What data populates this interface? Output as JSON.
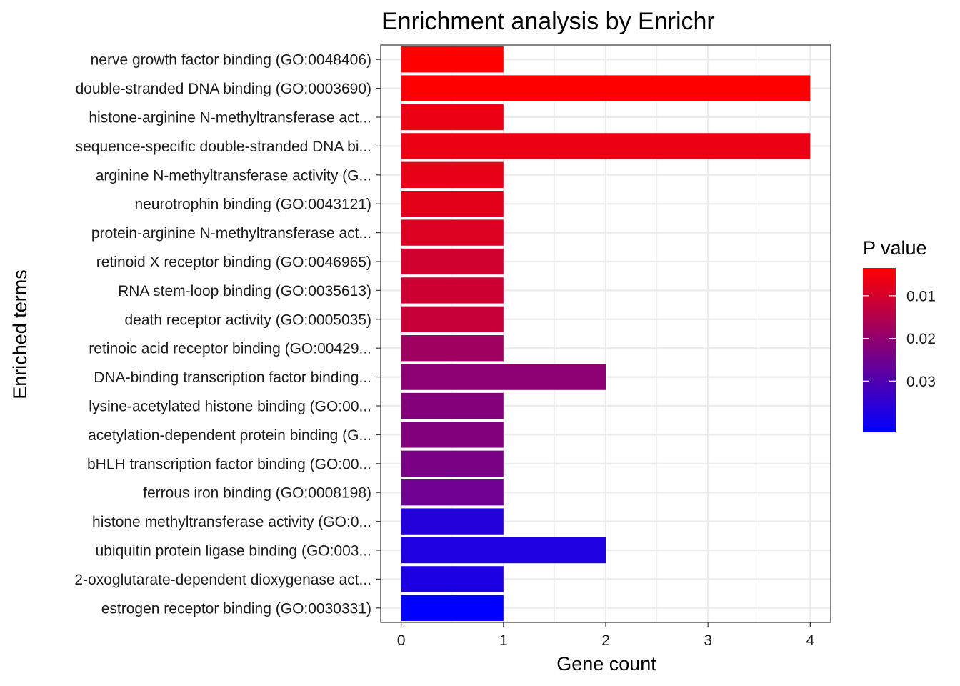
{
  "chart_data": {
    "type": "bar",
    "orientation": "horizontal",
    "title": "Enrichment analysis by Enrichr",
    "xlabel": "Gene count",
    "ylabel": "Enriched terms",
    "xlim": [
      -0.2,
      4.2
    ],
    "xticks": [
      0,
      1,
      2,
      3,
      4
    ],
    "grid": true,
    "categories": [
      "nerve growth factor binding (GO:0048406)",
      "double-stranded DNA binding (GO:0003690)",
      "histone-arginine N-methyltransferase act...",
      "sequence-specific double-stranded DNA bi...",
      "arginine N-methyltransferase activity (G...",
      "neurotrophin binding (GO:0043121)",
      "protein-arginine N-methyltransferase act...",
      "retinoid X receptor binding (GO:0046965)",
      "RNA stem-loop binding (GO:0035613)",
      "death receptor activity (GO:0005035)",
      "retinoic acid receptor binding (GO:00429...",
      "DNA-binding transcription factor binding...",
      "lysine-acetylated histone binding (GO:00...",
      "acetylation-dependent protein binding (G...",
      "bHLH transcription factor binding (GO:00...",
      "ferrous iron binding (GO:0008198)",
      "histone methyltransferase activity (GO:0...",
      "ubiquitin protein ligase binding (GO:003...",
      "2-oxoglutarate-dependent dioxygenase act...",
      "estrogen receptor binding (GO:0030331)"
    ],
    "values": [
      1,
      4,
      1,
      4,
      1,
      1,
      1,
      1,
      1,
      1,
      1,
      2,
      1,
      1,
      1,
      1,
      1,
      2,
      1,
      1
    ],
    "pvalues": [
      0.0035,
      0.0036,
      0.0063,
      0.0065,
      0.007,
      0.0074,
      0.0088,
      0.0104,
      0.0112,
      0.012,
      0.0178,
      0.021,
      0.022,
      0.0222,
      0.0236,
      0.0252,
      0.0365,
      0.0375,
      0.0378,
      0.042
    ],
    "color_scale": {
      "title": "P value",
      "low_color": "#ff0000",
      "high_color": "#0000ff",
      "range": [
        0.0035,
        0.042
      ],
      "ticks": [
        0.01,
        0.02,
        0.03
      ],
      "tick_labels": [
        "0.01",
        "0.02",
        "0.03"
      ]
    }
  }
}
